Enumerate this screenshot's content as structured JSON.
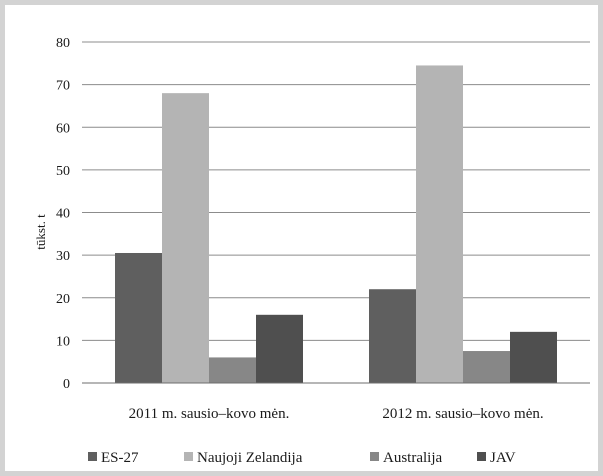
{
  "chart_data": {
    "type": "bar",
    "categories": [
      "2011 m. sausio–kovo mėn.",
      "2012 m. sausio–kovo mėn."
    ],
    "series": [
      {
        "name": "ES-27",
        "values": [
          30.5,
          22
        ],
        "color": "#5f5f5f"
      },
      {
        "name": "Naujoji Zelandija",
        "values": [
          68,
          74.5
        ],
        "color": "#b4b4b4"
      },
      {
        "name": "Australija",
        "values": [
          6,
          7.5
        ],
        "color": "#878787"
      },
      {
        "name": "JAV",
        "values": [
          16,
          12
        ],
        "color": "#4f4f4f"
      }
    ],
    "title": "",
    "xlabel": "",
    "ylabel": "tūkst. t",
    "ylim": [
      0,
      80
    ],
    "yticks": [
      0,
      10,
      20,
      30,
      40,
      50,
      60,
      70,
      80
    ],
    "grid": true,
    "legend_position": "bottom"
  }
}
